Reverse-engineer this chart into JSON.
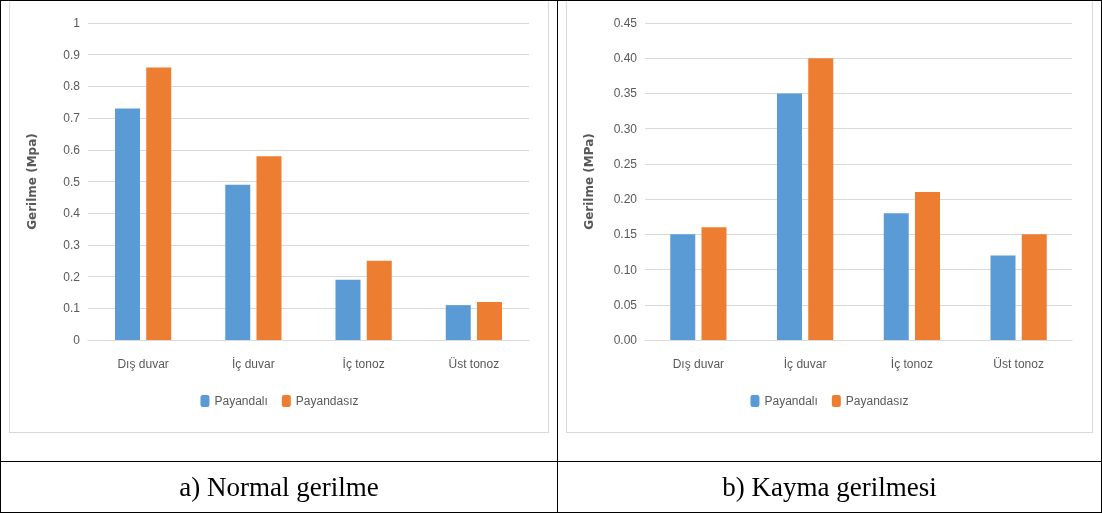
{
  "chart_data": [
    {
      "type": "bar",
      "title": "a) Normal gerilme",
      "ylabel": "Gerilme (Mpa)",
      "categories": [
        "Dış duvar",
        "İç duvar",
        "İç tonoz",
        "Üst tonoz"
      ],
      "series": [
        {
          "name": "Payandalı",
          "color": "#5b9bd5",
          "values": [
            0.73,
            0.49,
            0.19,
            0.11
          ]
        },
        {
          "name": "Payandasız",
          "color": "#ed7d31",
          "values": [
            0.86,
            0.58,
            0.25,
            0.12
          ]
        }
      ],
      "ylim": [
        0,
        1
      ],
      "yticks": [
        0,
        0.1,
        0.2,
        0.3,
        0.4,
        0.5,
        0.6,
        0.7,
        0.8,
        0.9,
        1
      ],
      "grid": "y",
      "legend": "bottom"
    },
    {
      "type": "bar",
      "title": "b) Kayma gerilmesi",
      "ylabel": "Gerilme (MPa)",
      "categories": [
        "Dış duvar",
        "İç duvar",
        "İç tonoz",
        "Üst tonoz"
      ],
      "series": [
        {
          "name": "Payandalı",
          "color": "#5b9bd5",
          "values": [
            0.15,
            0.35,
            0.18,
            0.12
          ]
        },
        {
          "name": "Payandasız",
          "color": "#ed7d31",
          "values": [
            0.16,
            0.4,
            0.21,
            0.15
          ]
        }
      ],
      "ylim": [
        0,
        0.45
      ],
      "yticks": [
        {
          "value": 0,
          "label": "0.00"
        },
        {
          "value": 0.05,
          "label": "0.05"
        },
        {
          "value": 0.1,
          "label": "0.10"
        },
        {
          "value": 0.15,
          "label": "0.15"
        },
        {
          "value": 0.2,
          "label": "0.20"
        },
        {
          "value": 0.25,
          "label": "0.25"
        },
        {
          "value": 0.3,
          "label": "0.30"
        },
        {
          "value": 0.35,
          "label": "0.35"
        },
        {
          "value": 0.4,
          "label": "0.40"
        },
        {
          "value": 0.45,
          "label": "0.45"
        }
      ],
      "grid": "y",
      "legend": "bottom"
    }
  ]
}
